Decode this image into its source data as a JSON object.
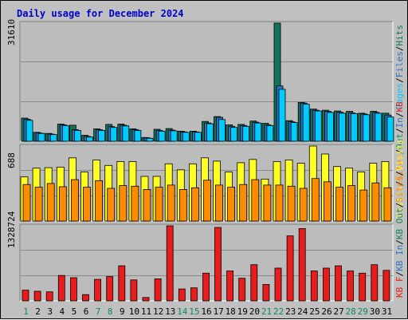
{
  "title": "Daily usage for December 2024",
  "colors": {
    "background": "#c0c0c0",
    "plot": "#bcbcbc",
    "hits": "#11755a",
    "files": "#2a72c8",
    "pages": "#00ccff",
    "visits": "#ffff22",
    "sites": "#ff8c00",
    "kbf": "#e81c1c",
    "kbin": "#2a72c8",
    "kbout": "#11875a",
    "title": "#0000cc",
    "weekend_day": "#11875a"
  },
  "days": [
    "1",
    "2",
    "3",
    "4",
    "5",
    "6",
    "7",
    "8",
    "9",
    "10",
    "11",
    "12",
    "13",
    "14",
    "15",
    "16",
    "17",
    "18",
    "19",
    "20",
    "21",
    "22",
    "23",
    "24",
    "25",
    "26",
    "27",
    "28",
    "29",
    "30",
    "31"
  ],
  "weekend_days": [
    "1",
    "7",
    "8",
    "14",
    "15",
    "21",
    "22",
    "28",
    "29"
  ],
  "chart_data": [
    {
      "type": "bar",
      "panel": "top",
      "max_label": "31610",
      "ylim": [
        0,
        31610
      ],
      "legend": [
        "Pages",
        "/",
        "Files",
        "/",
        "Hits"
      ],
      "series": [
        {
          "name": "Hits",
          "values": [
            6200,
            2400,
            2100,
            4600,
            4300,
            1600,
            3300,
            4500,
            4600,
            3300,
            1000,
            3200,
            3400,
            2700,
            2700,
            5300,
            6600,
            4400,
            4500,
            5400,
            4800,
            31610,
            5500,
            10400,
            8600,
            8300,
            8100,
            8000,
            7500,
            8000,
            7500
          ]
        },
        {
          "name": "Files",
          "values": [
            5900,
            2200,
            1900,
            4400,
            3100,
            1300,
            3100,
            3900,
            4300,
            3100,
            900,
            2900,
            3000,
            2500,
            2500,
            4900,
            6400,
            4000,
            4200,
            5100,
            4400,
            14800,
            5200,
            10200,
            8300,
            8000,
            7800,
            7600,
            7300,
            7700,
            7000
          ]
        },
        {
          "name": "Pages",
          "values": [
            5600,
            2100,
            1800,
            4200,
            2900,
            1100,
            2900,
            3700,
            4100,
            2900,
            800,
            2700,
            2800,
            2400,
            2400,
            4700,
            5800,
            3700,
            4000,
            4900,
            4200,
            13900,
            5000,
            9900,
            8100,
            7700,
            7500,
            7400,
            7100,
            7500,
            6500
          ]
        }
      ]
    },
    {
      "type": "bar",
      "panel": "middle",
      "max_label": "688",
      "ylim": [
        0,
        688
      ],
      "legend": [
        "Visits",
        "/",
        "Sites",
        "/",
        "Out",
        "/",
        "In",
        "/",
        "KB"
      ],
      "series": [
        {
          "name": "Visits",
          "values": [
            405,
            485,
            490,
            495,
            580,
            450,
            560,
            510,
            545,
            545,
            410,
            410,
            525,
            470,
            525,
            580,
            550,
            450,
            535,
            565,
            385,
            545,
            560,
            530,
            688,
            615,
            500,
            485,
            450,
            530,
            545
          ]
        },
        {
          "name": "Sites",
          "values": [
            335,
            310,
            345,
            315,
            380,
            310,
            370,
            300,
            325,
            320,
            290,
            310,
            330,
            290,
            305,
            375,
            330,
            310,
            335,
            380,
            330,
            330,
            320,
            300,
            390,
            360,
            310,
            325,
            285,
            350,
            305
          ]
        }
      ]
    },
    {
      "type": "bar",
      "panel": "bottom",
      "max_label": "1328724",
      "ylim": [
        0,
        1328724
      ],
      "legend": [
        "KB F",
        "/",
        "KB In",
        "/",
        "KB Out",
        "/",
        "Sites",
        "/",
        "Visits"
      ],
      "series": [
        {
          "name": "KB F",
          "values": [
            190000,
            170000,
            160000,
            450000,
            410000,
            110000,
            380000,
            430000,
            620000,
            370000,
            60000,
            390000,
            1328724,
            210000,
            230000,
            490000,
            1300000,
            530000,
            400000,
            640000,
            290000,
            580000,
            1150000,
            1280000,
            530000,
            580000,
            620000,
            530000,
            490000,
            640000,
            540000
          ]
        }
      ]
    }
  ]
}
